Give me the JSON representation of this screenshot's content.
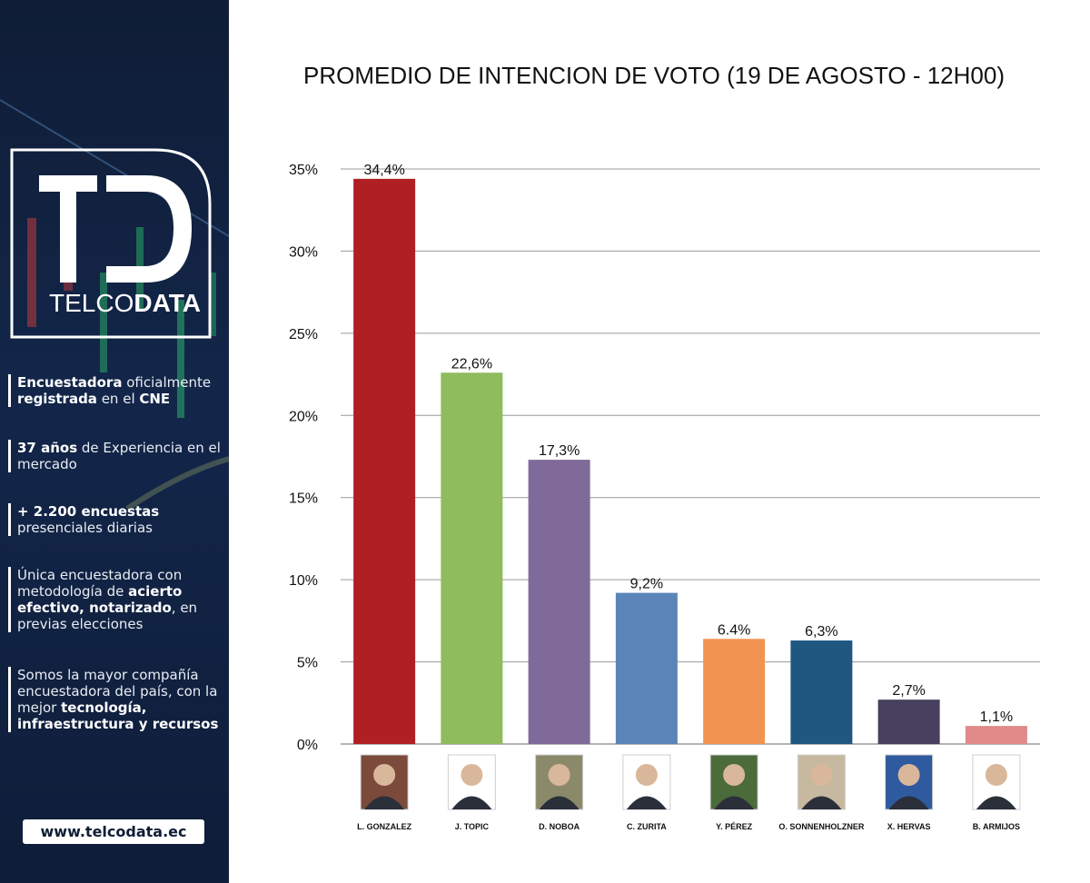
{
  "sidebar": {
    "logo_text_light": "TELCO",
    "logo_text_bold": "DATA",
    "features": [
      {
        "parts": [
          {
            "t": "Encuestadora",
            "b": true
          },
          {
            "t": " oficialmente ",
            "b": false
          },
          {
            "t": "registrada",
            "b": true
          },
          {
            "t": " en el ",
            "b": false
          },
          {
            "t": "CNE",
            "b": true
          }
        ]
      },
      {
        "parts": [
          {
            "t": "37 años",
            "b": true
          },
          {
            "t": " de Experiencia en el mercado",
            "b": false
          }
        ]
      },
      {
        "parts": [
          {
            "t": "+ 2.200 encuestas",
            "b": true
          },
          {
            "t": " presenciales diarias",
            "b": false
          }
        ]
      },
      {
        "parts": [
          {
            "t": "Única encuestadora con metodología de ",
            "b": false
          },
          {
            "t": "acierto efectivo, notarizado",
            "b": true
          },
          {
            "t": ", en previas elecciones",
            "b": false
          }
        ]
      },
      {
        "parts": [
          {
            "t": "Somos la mayor compañía encuestadora del país, con la mejor ",
            "b": false
          },
          {
            "t": "tecnología, infraestructura y recursos",
            "b": true
          }
        ]
      }
    ],
    "website": "www.telcodata.ec"
  },
  "chart_data": {
    "type": "bar",
    "title": "PROMEDIO DE INTENCION DE VOTO (19 DE AGOSTO - 12H00)",
    "xlabel": "",
    "ylabel": "",
    "ylim": [
      0,
      35
    ],
    "yticks": [
      "0%",
      "5%",
      "10%",
      "15%",
      "20%",
      "25%",
      "30%",
      "35%"
    ],
    "grid": true,
    "categories": [
      "L. GONZALEZ",
      "J. TOPIC",
      "D. NOBOA",
      "C. ZURITA",
      "Y. PÉREZ",
      "O. SONNENHOLZNER",
      "X. HERVAS",
      "B. ARMIJOS"
    ],
    "values": [
      34.4,
      22.6,
      17.3,
      9.2,
      6.4,
      6.3,
      2.7,
      1.1
    ],
    "data_labels": [
      "34,4%",
      "22,6%",
      "17,3%",
      "9,2%",
      "6.4%",
      "6,3%",
      "2,7%",
      "1,1%"
    ],
    "colors": [
      "#b01f24",
      "#8fbc5c",
      "#7f6a9a",
      "#5b85b8",
      "#f29451",
      "#1f5781",
      "#47405e",
      "#e08a8a"
    ],
    "photo_bg": [
      "#7b4a3a",
      "#ffffff",
      "#8a8a6a",
      "#ffffff",
      "#4b6b3a",
      "#c7b8a0",
      "#2f5aa0",
      "#ffffff"
    ]
  }
}
